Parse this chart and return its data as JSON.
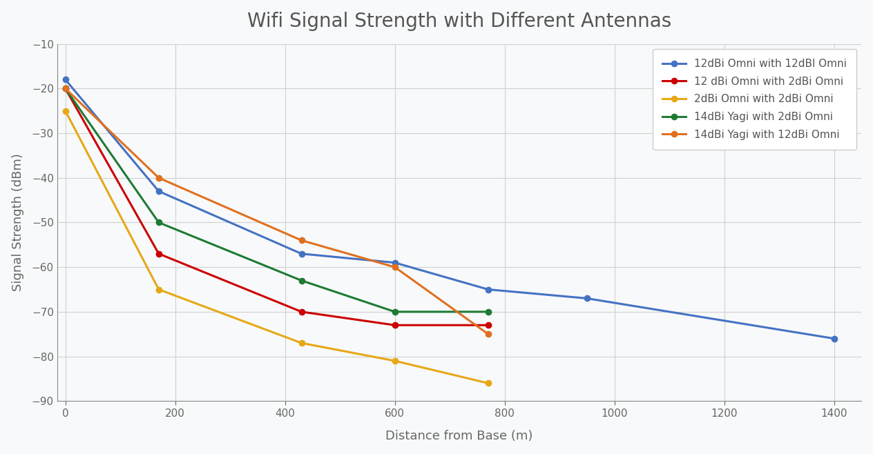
{
  "title": "Wifi Signal Strength with Different Antennas",
  "xlabel": "Distance from Base (m)",
  "ylabel": "Signal Strength (dBm)",
  "xlim": [
    -15,
    1450
  ],
  "ylim": [
    -90,
    -10
  ],
  "yticks": [
    -90,
    -80,
    -70,
    -60,
    -50,
    -40,
    -30,
    -20,
    -10
  ],
  "xticks": [
    0,
    200,
    400,
    600,
    800,
    1000,
    1200,
    1400
  ],
  "background_color": "#f8f9fa",
  "plot_background": "#f8f9fa",
  "title_color": "#555555",
  "label_color": "#666666",
  "tick_color": "#666666",
  "grid_color": "#d0d0d0",
  "series": [
    {
      "label": "12dBi Omni with 12dBl Omni",
      "color": "#4472c4",
      "x": [
        0,
        170,
        430,
        600,
        770,
        950,
        1400
      ],
      "y": [
        -18,
        -43,
        -57,
        -59,
        -65,
        -67,
        -76
      ]
    },
    {
      "label": "12 dBi Omni with 2dBi Omni",
      "color": "#cc0000",
      "x": [
        0,
        170,
        430,
        600,
        770
      ],
      "y": [
        -20,
        -57,
        -70,
        -73,
        -73
      ]
    },
    {
      "label": "2dBi Omni with 2dBi Omni",
      "color": "#e6a817",
      "x": [
        0,
        170,
        430,
        600,
        770
      ],
      "y": [
        -25,
        -65,
        -77,
        -81,
        -86
      ]
    },
    {
      "label": "14dBi Yagi with 2dBi Omni",
      "color": "#1e7b34",
      "x": [
        0,
        170,
        430,
        600,
        770
      ],
      "y": [
        -20,
        -50,
        -63,
        -70,
        -70
      ]
    },
    {
      "label": "14dBi Yagi with 12dBi Omni",
      "color": "#e07020",
      "x": [
        0,
        170,
        430,
        600,
        770
      ],
      "y": [
        -20,
        -40,
        -54,
        -60,
        -75
      ]
    }
  ]
}
